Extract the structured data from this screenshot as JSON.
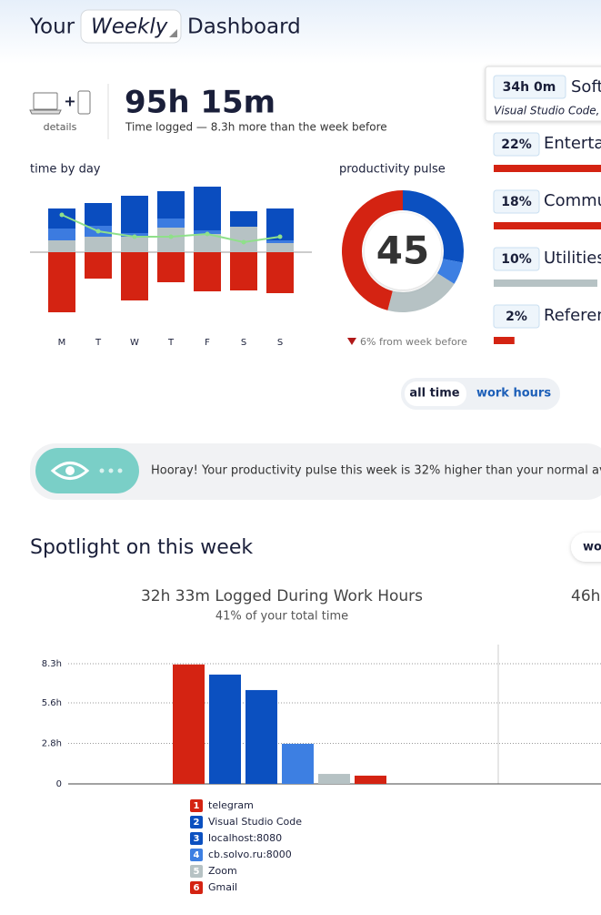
{
  "header": {
    "prefix": "Your",
    "period": "Weekly",
    "suffix": "Dashboard"
  },
  "summary": {
    "devices_label": "details",
    "plus": "+",
    "total": "95h 15m",
    "caption": "Time logged — 8.3h more than the week before"
  },
  "top_category": {
    "time": "34h 0m",
    "name": "Soft",
    "apps": "Visual Studio Code, lo"
  },
  "toggle": {
    "options": [
      "all time",
      "work hours"
    ]
  },
  "banner": {
    "text": "Hooray! Your productivity pulse this week is 32% higher than your normal ave"
  },
  "spotlight": {
    "title": "Spotlight on this week",
    "button": "wo",
    "next_chart_title": "46h"
  },
  "chart_data": [
    {
      "type": "stacked-bar",
      "title": "time by day",
      "categories": [
        "M",
        "T",
        "W",
        "T",
        "F",
        "S",
        "S"
      ],
      "ylim": [
        -70,
        75
      ],
      "series": [
        {
          "color": "#b6c2c4",
          "values": [
            13,
            17,
            17,
            27,
            20,
            28,
            10
          ]
        },
        {
          "color": "#3c7be0",
          "values": [
            13,
            12,
            4,
            10,
            4,
            0,
            3
          ]
        },
        {
          "color": "#0a4dbf",
          "values": [
            22,
            25,
            41,
            30,
            48,
            17,
            35
          ]
        },
        {
          "color": "#d42312",
          "values": [
            -66,
            -29,
            -53,
            -33,
            -43,
            -42,
            -45
          ]
        },
        {
          "type": "line",
          "color": "#8fe08a",
          "values": [
            41,
            23,
            17,
            17,
            20,
            11,
            17
          ]
        }
      ]
    },
    {
      "type": "donut",
      "title": "productivity pulse",
      "center_value": 45,
      "note": "6% from week before",
      "values": [
        28,
        6,
        20,
        46
      ],
      "colors": [
        "#0b50c0",
        "#3d7fe2",
        "#b6c2c4",
        "#d42312"
      ]
    },
    {
      "type": "hbar",
      "categories": [
        "Entertai",
        "Commu",
        "Utilities",
        "Referen"
      ],
      "values": [
        22,
        18,
        10,
        2
      ],
      "value_labels": [
        "22%",
        "18%",
        "10%",
        "2%"
      ],
      "colors": [
        "#d42312",
        "#d42312",
        "#b6c2c4",
        "#d42312"
      ],
      "xlim": [
        0,
        100
      ]
    },
    {
      "type": "bar",
      "title": "32h 33m Logged During Work Hours",
      "subtitle": "41% of your total time",
      "categories": [
        "telegram",
        "Visual Studio Code",
        "localhost:8080",
        "cb.solvo.ru:8000",
        "Zoom",
        "Gmail"
      ],
      "ranks": [
        1,
        2,
        3,
        4,
        5,
        6
      ],
      "values": [
        8.25,
        7.55,
        6.48,
        2.77,
        0.69,
        0.57
      ],
      "colors": [
        "#d42312",
        "#0b50c0",
        "#0b50c0",
        "#3d7fe2",
        "#b6c2c4",
        "#d42312"
      ],
      "ylim": [
        0,
        8.3
      ],
      "yticks": [
        0,
        {
          "value": 2.8,
          "label": "2.8h"
        },
        {
          "value": 5.6,
          "label": "5.6h"
        },
        {
          "value": 8.3,
          "label": "8.3h"
        }
      ],
      "grid": true
    }
  ]
}
